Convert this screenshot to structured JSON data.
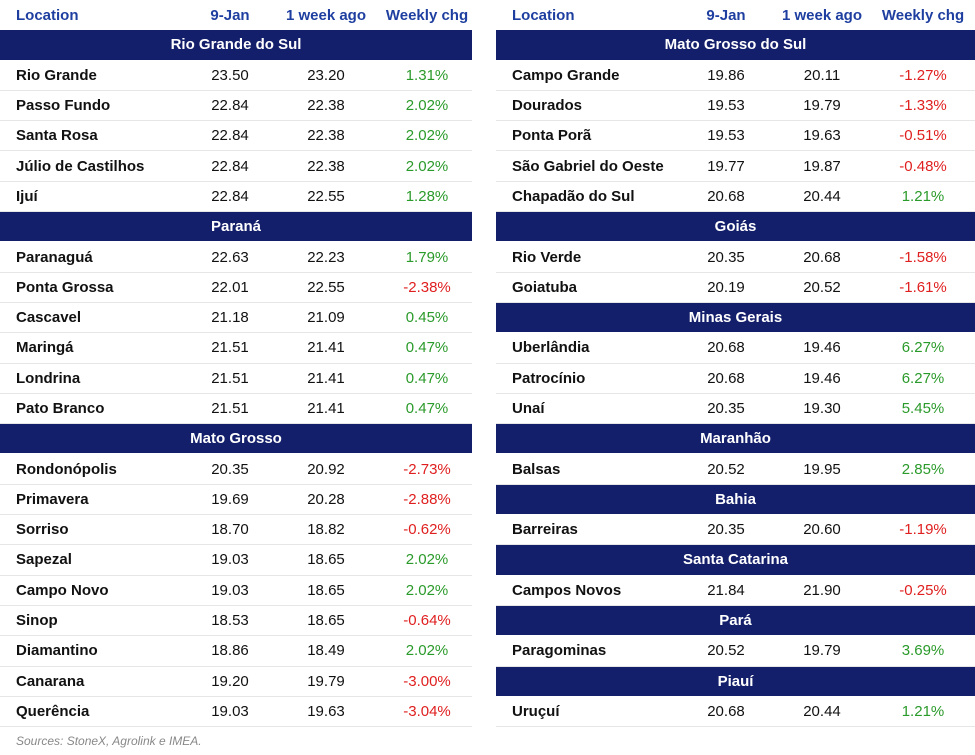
{
  "tables": [
    {
      "columns": [
        "Location",
        "9-Jan",
        "1 week ago",
        "Weekly chg"
      ],
      "groups": [
        {
          "region": "Rio Grande do Sul",
          "rows": [
            [
              "Rio Grande",
              "23.50",
              "23.20",
              "1.31%"
            ],
            [
              "Passo Fundo",
              "22.84",
              "22.38",
              "2.02%"
            ],
            [
              "Santa Rosa",
              "22.84",
              "22.38",
              "2.02%"
            ],
            [
              "Júlio de Castilhos",
              "22.84",
              "22.38",
              "2.02%"
            ],
            [
              "Ijuí",
              "22.84",
              "22.55",
              "1.28%"
            ]
          ]
        },
        {
          "region": "Paraná",
          "rows": [
            [
              "Paranaguá",
              "22.63",
              "22.23",
              "1.79%"
            ],
            [
              "Ponta Grossa",
              "22.01",
              "22.55",
              "-2.38%"
            ],
            [
              "Cascavel",
              "21.18",
              "21.09",
              "0.45%"
            ],
            [
              "Maringá",
              "21.51",
              "21.41",
              "0.47%"
            ],
            [
              "Londrina",
              "21.51",
              "21.41",
              "0.47%"
            ],
            [
              "Pato Branco",
              "21.51",
              "21.41",
              "0.47%"
            ]
          ]
        },
        {
          "region": "Mato Grosso",
          "rows": [
            [
              "Rondonópolis",
              "20.35",
              "20.92",
              "-2.73%"
            ],
            [
              "Primavera",
              "19.69",
              "20.28",
              "-2.88%"
            ],
            [
              "Sorriso",
              "18.70",
              "18.82",
              "-0.62%"
            ],
            [
              "Sapezal",
              "19.03",
              "18.65",
              "2.02%"
            ],
            [
              "Campo Novo",
              "19.03",
              "18.65",
              "2.02%"
            ],
            [
              "Sinop",
              "18.53",
              "18.65",
              "-0.64%"
            ],
            [
              "Diamantino",
              "18.86",
              "18.49",
              "2.02%"
            ],
            [
              "Canarana",
              "19.20",
              "19.79",
              "-3.00%"
            ],
            [
              "Querência",
              "19.03",
              "19.63",
              "-3.04%"
            ]
          ]
        }
      ]
    },
    {
      "columns": [
        "Location",
        "9-Jan",
        "1 week ago",
        "Weekly chg"
      ],
      "groups": [
        {
          "region": "Mato Grosso do Sul",
          "rows": [
            [
              "Campo Grande",
              "19.86",
              "20.11",
              "-1.27%"
            ],
            [
              "Dourados",
              "19.53",
              "19.79",
              "-1.33%"
            ],
            [
              "Ponta Porã",
              "19.53",
              "19.63",
              "-0.51%"
            ],
            [
              "São Gabriel do Oeste",
              "19.77",
              "19.87",
              "-0.48%"
            ],
            [
              "Chapadão do Sul",
              "20.68",
              "20.44",
              "1.21%"
            ]
          ]
        },
        {
          "region": "Goiás",
          "rows": [
            [
              "Rio Verde",
              "20.35",
              "20.68",
              "-1.58%"
            ],
            [
              "Goiatuba",
              "20.19",
              "20.52",
              "-1.61%"
            ]
          ]
        },
        {
          "region": "Minas Gerais",
          "rows": [
            [
              "Uberlândia",
              "20.68",
              "19.46",
              "6.27%"
            ],
            [
              "Patrocínio",
              "20.68",
              "19.46",
              "6.27%"
            ],
            [
              "Unaí",
              "20.35",
              "19.30",
              "5.45%"
            ]
          ]
        },
        {
          "region": "Maranhão",
          "rows": [
            [
              "Balsas",
              "20.52",
              "19.95",
              "2.85%"
            ]
          ]
        },
        {
          "region": "Bahia",
          "rows": [
            [
              "Barreiras",
              "20.35",
              "20.60",
              "-1.19%"
            ]
          ]
        },
        {
          "region": "Santa Catarina",
          "rows": [
            [
              "Campos Novos",
              "21.84",
              "21.90",
              "-0.25%"
            ]
          ]
        },
        {
          "region": "Pará",
          "rows": [
            [
              "Paragominas",
              "20.52",
              "19.79",
              "3.69%"
            ]
          ]
        },
        {
          "region": "Piauí",
          "rows": [
            [
              "Uruçuí",
              "20.68",
              "20.44",
              "1.21%"
            ]
          ]
        }
      ]
    }
  ],
  "source": "Sources: StoneX, Agrolink e IMEA."
}
